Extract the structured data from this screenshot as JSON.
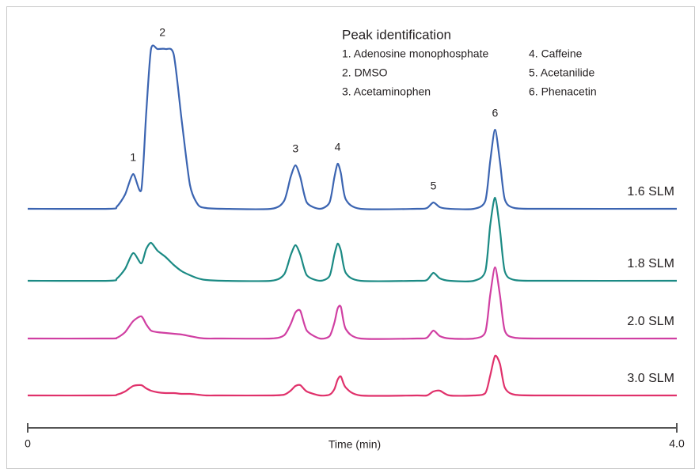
{
  "chart_data": {
    "type": "line",
    "xlabel": "Time (min)",
    "xlim": [
      0,
      4
    ],
    "xticks": [
      0,
      {
        "value": 4,
        "label": "4.0"
      }
    ],
    "legend_title": "Peak identification",
    "peak_legend": [
      "1. Adenosine monophosphate",
      "2. DMSO",
      "3. Acetaminophen",
      "4. Caffeine",
      "5. Acetanilide",
      "6. Phenacetin"
    ],
    "annotations": [
      {
        "label": "1",
        "x": 0.65
      },
      {
        "label": "2",
        "x": 0.83
      },
      {
        "label": "3",
        "x": 1.65
      },
      {
        "label": "4",
        "x": 1.91
      },
      {
        "label": "5",
        "x": 2.5
      },
      {
        "label": "6",
        "x": 2.88
      }
    ],
    "x": [
      0,
      0.5,
      0.55,
      0.6,
      0.65,
      0.7,
      0.73,
      0.76,
      0.8,
      0.85,
      0.9,
      0.95,
      1.0,
      1.05,
      1.1,
      1.2,
      1.5,
      1.58,
      1.62,
      1.65,
      1.68,
      1.72,
      1.8,
      1.86,
      1.89,
      1.91,
      1.93,
      1.96,
      2.05,
      2.4,
      2.46,
      2.5,
      2.54,
      2.6,
      2.75,
      2.82,
      2.85,
      2.88,
      2.91,
      2.94,
      3.0,
      3.2,
      4.0
    ],
    "series": [
      {
        "name": "1.6 SLM",
        "color": "#3b64b1",
        "values": [
          0,
          0,
          3,
          18,
          44,
          24,
          120,
          202,
          202,
          202,
          195,
          110,
          30,
          5,
          1,
          0,
          0,
          10,
          40,
          55,
          40,
          8,
          0,
          8,
          40,
          57,
          45,
          12,
          0,
          0,
          1,
          8,
          2,
          0,
          0,
          10,
          60,
          100,
          60,
          12,
          1,
          0,
          0
        ]
      },
      {
        "name": "1.8 SLM",
        "color": "#1b8a84",
        "values": [
          0,
          0,
          3,
          15,
          35,
          22,
          40,
          48,
          38,
          30,
          20,
          12,
          7,
          3,
          1,
          0,
          0,
          8,
          32,
          45,
          33,
          7,
          0,
          6,
          33,
          47,
          38,
          10,
          0,
          0,
          1,
          10,
          3,
          0,
          0,
          12,
          70,
          105,
          65,
          12,
          1,
          0,
          0
        ]
      },
      {
        "name": "2.0 SLM",
        "color": "#d03fa2",
        "values": [
          0,
          0,
          1,
          8,
          22,
          28,
          18,
          10,
          8,
          7,
          6,
          5,
          3,
          1,
          0,
          0,
          0,
          4,
          18,
          33,
          35,
          10,
          0,
          3,
          20,
          38,
          40,
          12,
          0,
          0,
          1,
          10,
          3,
          0,
          0,
          8,
          55,
          90,
          55,
          10,
          1,
          0,
          0
        ]
      },
      {
        "name": "3.0 SLM",
        "color": "#e0316b",
        "values": [
          0,
          0,
          1,
          5,
          12,
          13,
          9,
          6,
          4,
          3,
          3,
          2,
          2,
          1,
          0,
          0,
          0,
          1,
          6,
          12,
          13,
          5,
          0,
          1,
          8,
          20,
          24,
          10,
          0,
          0,
          0,
          5,
          6,
          0,
          0,
          3,
          25,
          50,
          40,
          10,
          1,
          0,
          0
        ]
      }
    ]
  }
}
